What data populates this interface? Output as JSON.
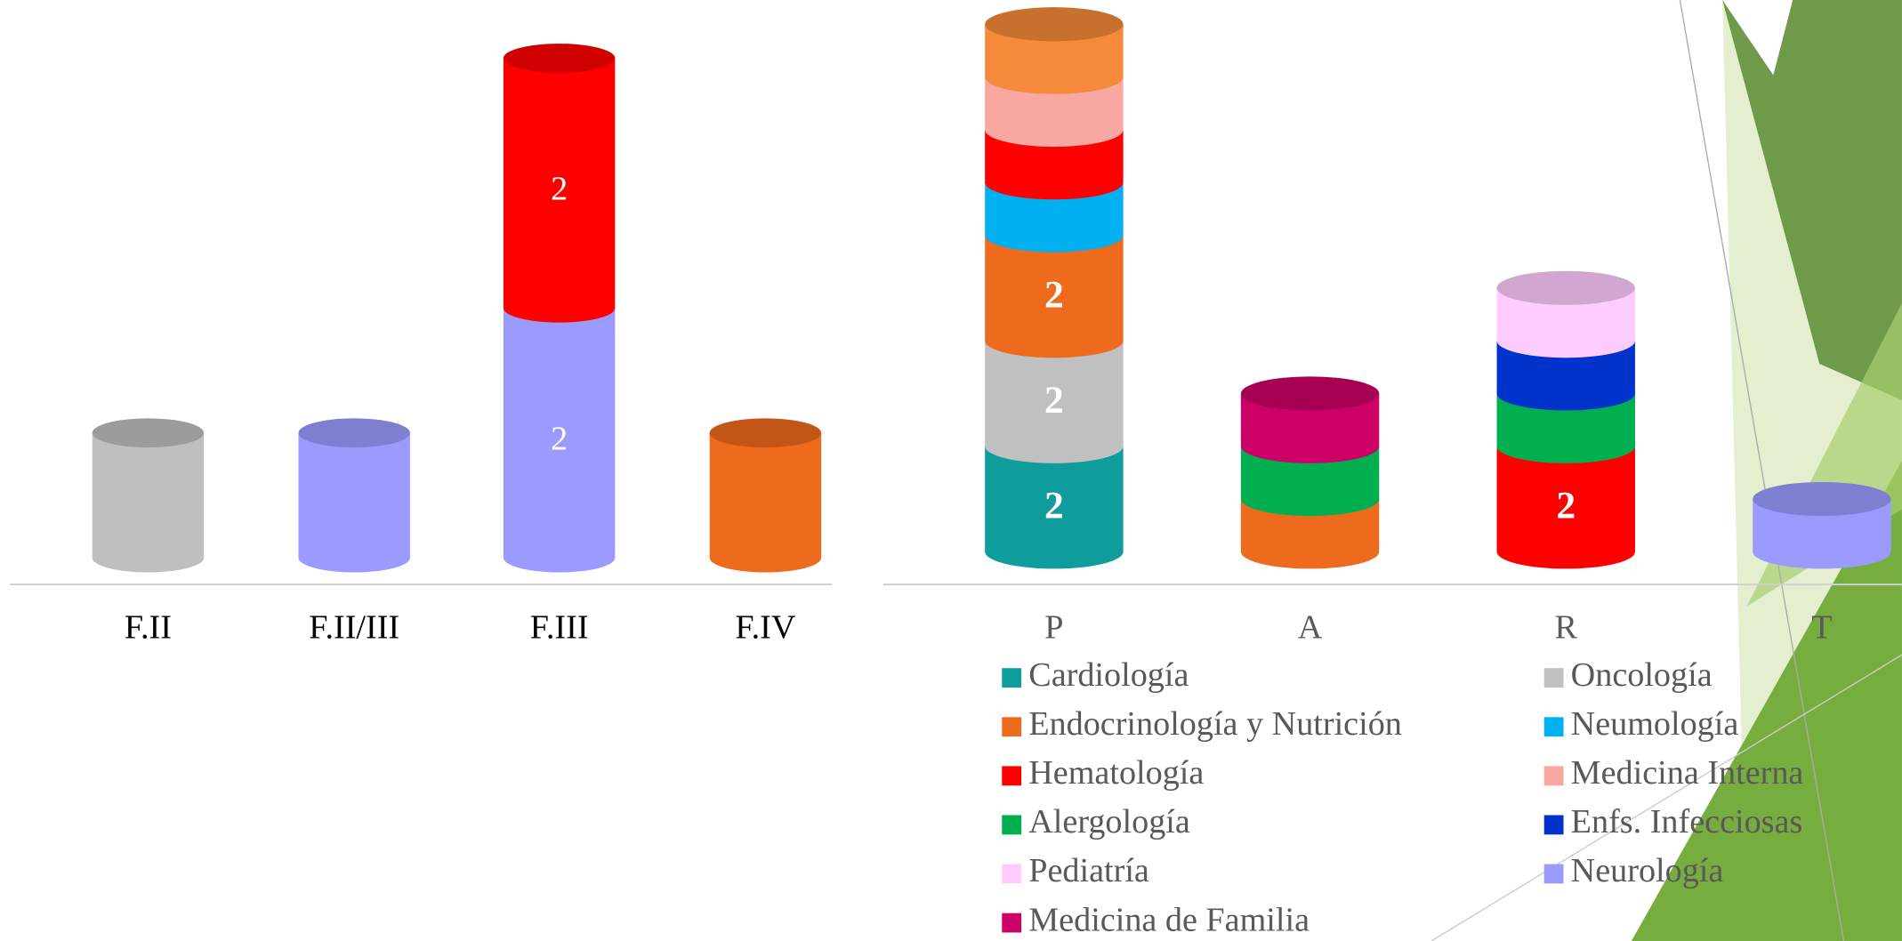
{
  "chart_data": [
    {
      "type": "stacked-cylinder",
      "categories": [
        "F.II",
        "F.II/III",
        "F.III",
        "F.IV"
      ],
      "series": [
        {
          "color": "#bfbfbf",
          "values": [
            1,
            null,
            null,
            null
          ]
        },
        {
          "color": "#9b9bff",
          "values": [
            null,
            1,
            2,
            null
          ],
          "value_labels": [
            null,
            null,
            "2",
            null
          ]
        },
        {
          "color": "#ff0000",
          "values": [
            null,
            null,
            2,
            null
          ],
          "value_labels": [
            null,
            null,
            "2",
            null
          ]
        },
        {
          "color": "#ee6a1c",
          "values": [
            null,
            null,
            null,
            1
          ]
        }
      ]
    },
    {
      "type": "stacked-cylinder",
      "categories": [
        "P",
        "A",
        "R",
        "T"
      ],
      "series": [
        {
          "name": "Cardiología",
          "color": "#0e9c9c",
          "values": [
            2,
            null,
            null,
            null
          ],
          "value_labels": [
            "2",
            null,
            null,
            null
          ]
        },
        {
          "name": "Oncología",
          "color": "#c0c0c0",
          "values": [
            2,
            null,
            null,
            null
          ],
          "value_labels": [
            "2",
            null,
            null,
            null
          ]
        },
        {
          "name": "Endocrinología y Nutrición",
          "color": "#ee6a1c",
          "values": [
            2,
            1,
            null,
            null
          ],
          "value_labels": [
            "2",
            null,
            null,
            null
          ]
        },
        {
          "name": "Neumología",
          "color": "#00b0f0",
          "values": [
            1,
            null,
            null,
            null
          ]
        },
        {
          "name": "Hematología",
          "color": "#ff0000",
          "values": [
            1,
            null,
            2,
            null
          ],
          "value_labels": [
            null,
            null,
            "2",
            null
          ]
        },
        {
          "name": "Medicina Interna",
          "color": "#f8a8a0",
          "values": [
            1,
            null,
            null,
            null
          ]
        },
        {
          "name": "Alergología",
          "color": "#00b050",
          "values": [
            null,
            1,
            1,
            null
          ]
        },
        {
          "name": "Enfs. Infecciosas",
          "color": "#0033cc",
          "values": [
            null,
            null,
            1,
            null
          ]
        },
        {
          "name": "Pediatría",
          "color": "#ffccff",
          "values": [
            null,
            null,
            1,
            null
          ]
        },
        {
          "name": "Neurología",
          "color": "#9b9bff",
          "values": [
            null,
            null,
            null,
            1
          ]
        },
        {
          "name": "Medicina de Familia",
          "color": "#cc0066",
          "values": [
            null,
            1,
            null,
            null
          ]
        },
        {
          "color": "#f58a3a",
          "values": [
            1,
            null,
            null,
            null
          ]
        }
      ]
    }
  ]
}
